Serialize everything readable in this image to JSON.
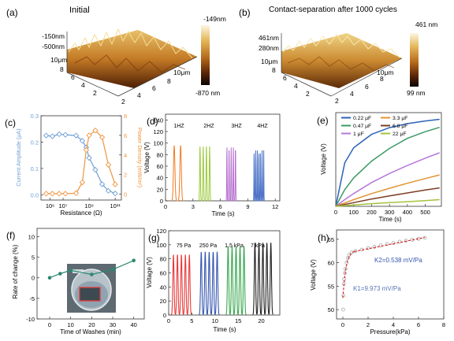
{
  "panels": {
    "a": {
      "label": "(a)",
      "title": "Initial",
      "z_ticks": [
        "-150nm",
        "-500nm"
      ],
      "y_axis_label": "10μm",
      "y_ticks": [
        "8",
        "6",
        "4",
        "2"
      ],
      "x_axis_label": "10μm",
      "x_ticks": [
        "8",
        "6",
        "4",
        "2"
      ],
      "colorbar": {
        "top": "-149nm",
        "bottom": "-870 nm"
      }
    },
    "b": {
      "label": "(b)",
      "title": "Contact-separation after 1000 cycles",
      "z_ticks": [
        "461nm",
        "280nm"
      ],
      "y_axis_label": "10μm",
      "y_ticks": [
        "8",
        "6",
        "4",
        "2"
      ],
      "x_axis_label": "10μm",
      "x_ticks": [
        "8",
        "6",
        "4",
        "2"
      ],
      "colorbar": {
        "top": "461  nm",
        "bottom": "99 nm"
      }
    }
  },
  "colors": {
    "blue": "#6e9fd4",
    "orange": "#ee9440",
    "c1": "#f07a22",
    "c2": "#9ac93a",
    "c3": "#b66fcf",
    "c4": "#4c73c7",
    "cap_022": "#2d62b8",
    "cap_047": "#3c9a66",
    "cap_1": "#b577d9",
    "cap_33": "#e19434",
    "cap_68": "#7d3e26",
    "cap_22": "#a3c43e",
    "wash": "#2c8870",
    "p75": "#e83a3a",
    "p250": "#3556b0",
    "p15": "#3aa851",
    "p7": "#222222",
    "fit": "#d62626",
    "dot": "#a8a8a8"
  },
  "chart_data": [
    {
      "panel": "c",
      "label": "(c)",
      "type": "line",
      "xscale": "log",
      "xlabel": "Resistance (Ω)",
      "ylabel": "Current Amplitude (μA)",
      "y2label": "Power Density (mW/m²)",
      "xlim": [
        200000,
        300000000000
      ],
      "ylim": [
        -0.02,
        0.3
      ],
      "y2lim": [
        -0.6,
        8
      ],
      "x_tick_labels": [
        "10⁶",
        "10⁷",
        "10⁹",
        "10¹¹"
      ],
      "y_tick_labels": [
        "0.0",
        "0.1",
        "0.2",
        "0.3"
      ],
      "y2_tick_labels": [
        "0",
        "2",
        "4",
        "6",
        "8"
      ],
      "series": [
        {
          "axis": "left",
          "x": [
            500000,
            1500000,
            5000000,
            15000000,
            100000000,
            300000000,
            600000000,
            1000000000,
            3000000000,
            10000000000,
            30000000000,
            100000000000
          ],
          "values": [
            0.225,
            0.222,
            0.23,
            0.228,
            0.225,
            0.205,
            0.18,
            0.14,
            0.095,
            0.04,
            0.015,
            0.005
          ]
        },
        {
          "axis": "right",
          "x": [
            500000,
            1500000,
            5000000,
            15000000,
            100000000,
            300000000,
            600000000,
            1000000000,
            3000000000,
            10000000000,
            30000000000,
            100000000000
          ],
          "values": [
            0.05,
            0.05,
            0.05,
            0.05,
            0.1,
            1.2,
            4.5,
            6.0,
            6.5,
            5.8,
            3.0,
            1.0
          ]
        }
      ]
    },
    {
      "panel": "d",
      "label": "(d)",
      "type": "line",
      "xlabel": "Time (s)",
      "ylabel": "Voltage (V)",
      "xlim": [
        0,
        12.5
      ],
      "ylim": [
        0,
        150
      ],
      "x_tick_labels": [
        "0",
        "3",
        "6",
        "9",
        "12"
      ],
      "y_tick_labels": [
        "0",
        "20",
        "40",
        "60",
        "80",
        "100",
        "120",
        "140"
      ],
      "group_labels": [
        "1HZ",
        "2HZ",
        "3HZ",
        "4HZ"
      ],
      "groups": [
        {
          "start": 0.6,
          "freq": 1,
          "count": 2,
          "peak": 96
        },
        {
          "start": 3.6,
          "freq": 2,
          "count": 4,
          "peak": 95
        },
        {
          "start": 6.6,
          "freq": 3,
          "count": 5,
          "peak": 93
        },
        {
          "start": 9.6,
          "freq": 4,
          "count": 7,
          "peak": 88
        }
      ]
    },
    {
      "panel": "e",
      "label": "(e)",
      "type": "line",
      "xlabel": "Time (s)",
      "ylabel": "Voltage (V)",
      "xlim": [
        0,
        590
      ],
      "ylim": [
        0,
        28
      ],
      "x_tick_labels": [
        "0",
        "100",
        "200",
        "300",
        "400",
        "500"
      ],
      "y_tick_labels": [],
      "series": [
        {
          "name": "0.22 μF",
          "x": [
            0,
            50,
            100,
            200,
            300,
            400,
            500,
            580
          ],
          "values": [
            0,
            13,
            17.5,
            21.5,
            23.5,
            24.7,
            25.5,
            26
          ]
        },
        {
          "name": "0.47 μF",
          "x": [
            0,
            50,
            100,
            200,
            300,
            400,
            500,
            580
          ],
          "values": [
            0,
            5,
            8.5,
            13.5,
            17.3,
            20.3,
            22.3,
            23.6
          ]
        },
        {
          "name": "1 μF",
          "x": [
            0,
            50,
            100,
            200,
            300,
            400,
            500,
            580
          ],
          "values": [
            0,
            2,
            3.8,
            7.1,
            9.8,
            12.2,
            14.4,
            16
          ]
        },
        {
          "name": "3.3 μF",
          "x": [
            0,
            100,
            200,
            300,
            400,
            500,
            580
          ],
          "values": [
            0,
            2,
            3.8,
            5.4,
            6.9,
            8.3,
            9.4
          ]
        },
        {
          "name": "6.8 μF",
          "x": [
            0,
            100,
            200,
            300,
            400,
            500,
            580
          ],
          "values": [
            0,
            1.1,
            2.2,
            3.1,
            4,
            4.9,
            5.5
          ]
        },
        {
          "name": "22 μF",
          "x": [
            0,
            100,
            200,
            300,
            400,
            500,
            580
          ],
          "values": [
            0,
            0.4,
            0.8,
            1.1,
            1.4,
            1.7,
            2
          ]
        }
      ]
    },
    {
      "panel": "f",
      "label": "(f)",
      "type": "line",
      "xlabel": "Time of Washes (min)",
      "ylabel": "Rate of change (%)",
      "xlim": [
        -6,
        45
      ],
      "ylim": [
        -10,
        12
      ],
      "x_tick_labels": [
        "0",
        "10",
        "20",
        "30",
        "40"
      ],
      "y_tick_labels": [
        "-10",
        "-5",
        "0",
        "5",
        "10"
      ],
      "series": [
        {
          "x": [
            0,
            5,
            10,
            20,
            30,
            40
          ],
          "values": [
            0,
            1,
            1.8,
            0.8,
            2,
            4.2
          ]
        }
      ]
    },
    {
      "panel": "g",
      "label": "(g)",
      "type": "line",
      "xlabel": "Time (s)",
      "ylabel": "Voltage (V)",
      "xlim": [
        0,
        24
      ],
      "ylim": [
        0,
        120
      ],
      "x_tick_labels": [
        "0",
        "5",
        "10",
        "15",
        "20"
      ],
      "y_tick_labels": [
        "0",
        "20",
        "40",
        "60",
        "80",
        "100",
        "120"
      ],
      "group_labels": [
        "75 Pa",
        "250 Pa",
        "1.5 kPa",
        "7 kPa"
      ],
      "groups": [
        {
          "start": 0.6,
          "period": 0.86,
          "count": 5,
          "peak": 86
        },
        {
          "start": 6.6,
          "period": 0.86,
          "count": 5,
          "peak": 90
        },
        {
          "start": 12.4,
          "period": 0.86,
          "count": 5,
          "peak": 98
        },
        {
          "start": 18.2,
          "period": 0.86,
          "count": 5,
          "peak": 103
        }
      ]
    },
    {
      "panel": "h",
      "label": "(h)",
      "type": "scatter",
      "xlabel": "Pressure(kPa)",
      "ylabel": "Voltage (V)",
      "xlim": [
        -0.5,
        8
      ],
      "ylim": [
        48,
        67
      ],
      "x_tick_labels": [
        "0",
        "2",
        "4",
        "6",
        "8"
      ],
      "y_tick_labels": [
        "50",
        "55",
        "60",
        "65"
      ],
      "annotations": [
        "K2=0.538  mV/Pa",
        "K1=9.973 mV/Pa"
      ],
      "points": {
        "x": [
          0.02,
          0.05,
          0.08,
          0.1,
          0.15,
          0.2,
          0.3,
          0.4,
          0.5,
          0.7,
          1.0,
          1.5,
          2.0,
          2.5,
          3.0,
          3.5,
          4.0,
          4.5,
          5.0,
          5.5,
          6.0,
          6.5
        ],
        "values": [
          50,
          53,
          55.5,
          56.5,
          57.8,
          58.7,
          60,
          61,
          61.7,
          62.2,
          62.5,
          62.8,
          63.1,
          63.4,
          63.7,
          64,
          64.2,
          64.5,
          64.7,
          64.9,
          65.1,
          65.3
        ]
      },
      "fit_low": {
        "x": [
          0,
          0.1,
          0.2,
          0.35,
          0.5,
          0.7,
          0.9
        ],
        "values": [
          52.5,
          55.8,
          58.2,
          60.3,
          61.4,
          62.1,
          62.4
        ]
      },
      "fit_high": {
        "x": [
          0.9,
          6.5
        ],
        "values": [
          62.4,
          65.4
        ]
      }
    }
  ]
}
